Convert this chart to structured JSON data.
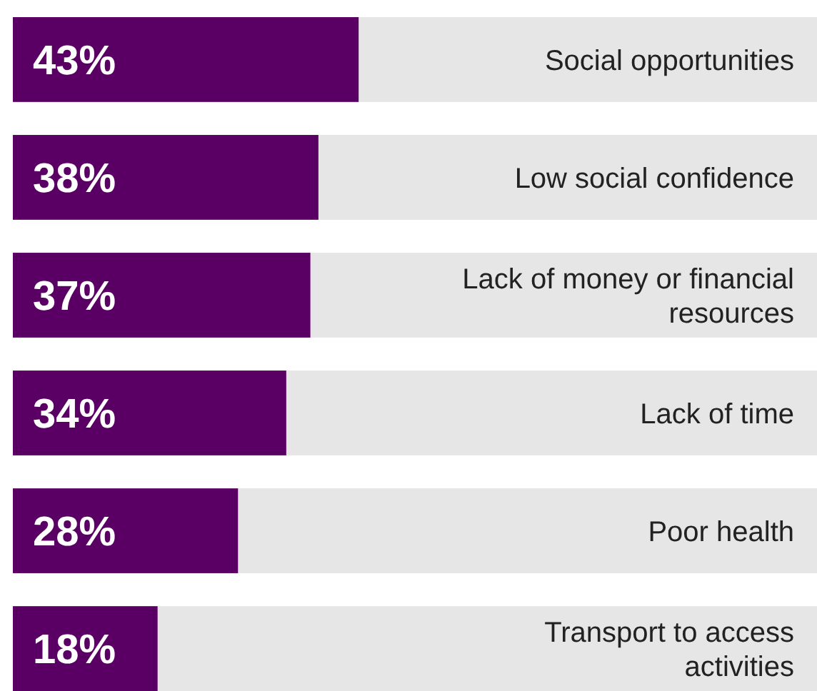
{
  "chart_data": {
    "type": "bar",
    "orientation": "horizontal",
    "categories": [
      "Social opportunities",
      "Low social confidence",
      "Lack of money or financial resources",
      "Lack of time",
      "Poor health",
      "Transport to access activities"
    ],
    "values": [
      43,
      38,
      37,
      34,
      28,
      18
    ],
    "value_labels": [
      "43%",
      "38%",
      "37%",
      "34%",
      "28%",
      "18%"
    ],
    "color": "#5a0064",
    "xlim": [
      0,
      100
    ],
    "tick_labels": false
  }
}
